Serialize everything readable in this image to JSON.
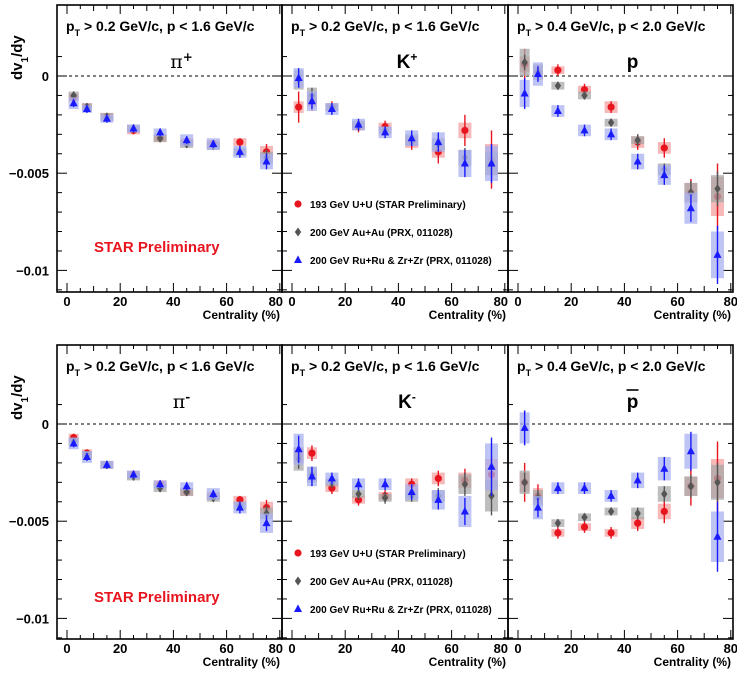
{
  "figure": {
    "ylabel": "dv",
    "ylabel_sub": "1",
    "ylabel_tail": "/dy",
    "xlabel": "Centrality (%)",
    "xticks": [
      "0",
      "20",
      "40",
      "60",
      "80"
    ],
    "yticks": [
      "0",
      "−0.005",
      "−0.01"
    ],
    "watermark": "STAR Preliminary",
    "legend": [
      {
        "label": "193 GeV U+U (STAR Preliminary)",
        "marker": "circle",
        "color": "#e8141e"
      },
      {
        "label": "200 GeV Au+Au (PRX, 011028)",
        "marker": "diamond",
        "color": "#555555"
      },
      {
        "label": "200 GeV Ru+Ru & Zr+Zr (PRX, 011028)",
        "marker": "triangle",
        "color": "#1a1aff"
      }
    ],
    "colors": {
      "uu": "#e8141e",
      "auau": "#555555",
      "ruzr": "#1a1aff",
      "uu_band": "#f4a0a0",
      "auau_band": "#a8a8a8",
      "ruzr_band": "#a8b0f0"
    }
  },
  "panels": [
    {
      "cuts": {
        "p1": "p",
        "s1": "T",
        "p2": " > 0.2 GeV/c, p < 1.6 GeV/c"
      },
      "particle": "π",
      "charge": "+"
    },
    {
      "cuts": {
        "p1": "p",
        "s1": "T",
        "p2": " > 0.2 GeV/c, p < 1.6 GeV/c"
      },
      "particle": "K",
      "charge": "+"
    },
    {
      "cuts": {
        "p1": "p",
        "s1": "T",
        "p2": " > 0.4 GeV/c, p < 2.0 GeV/c"
      },
      "particle": "p",
      "charge": ""
    },
    {
      "cuts": {
        "p1": "p",
        "s1": "T",
        "p2": " > 0.2 GeV/c, p < 1.6 GeV/c"
      },
      "particle": "π",
      "charge": "-"
    },
    {
      "cuts": {
        "p1": "p",
        "s1": "T",
        "p2": " > 0.2 GeV/c, p < 1.6 GeV/c"
      },
      "particle": "K",
      "charge": "-"
    },
    {
      "cuts": {
        "p1": "p",
        "s1": "T",
        "p2": " > 0.4 GeV/c, p < 2.0 GeV/c"
      },
      "particle": "p",
      "charge": "",
      "overline": true
    }
  ],
  "chart_data": [
    {
      "type": "scatter",
      "panel": "pi+",
      "x": [
        2.5,
        7.5,
        15,
        25,
        35,
        45,
        55,
        65,
        75
      ],
      "xlim": [
        -4,
        83
      ],
      "ylim": [
        -0.011,
        0.0015
      ],
      "series": [
        {
          "name": "193 GeV U+U (STAR Preliminary)",
          "y": [
            -0.0011,
            -0.0016,
            -0.0021,
            -0.0028,
            -0.0032,
            -0.0034,
            -0.0035,
            -0.0034,
            -0.0039
          ],
          "err": [
            0.0002,
            0.0002,
            0.0002,
            0.0002,
            0.0002,
            0.0002,
            0.0002,
            0.0002,
            0.0004
          ],
          "sys": [
            0.0002,
            0.0002,
            0.0002,
            0.0002,
            0.0002,
            0.0002,
            0.0002,
            0.0002,
            0.0003
          ]
        },
        {
          "name": "200 GeV Au+Au (PRX, 011028)",
          "y": [
            -0.001,
            -0.0016,
            -0.0021,
            -0.0027,
            -0.0032,
            -0.0035,
            -0.0036,
            -0.0039,
            -0.0042
          ],
          "err": [
            0.0002,
            0.0002,
            0.0002,
            0.0002,
            0.0002,
            0.0002,
            0.0002,
            0.0003,
            0.0004
          ],
          "sys": [
            0.0002,
            0.0002,
            0.0002,
            0.0002,
            0.0002,
            0.0002,
            0.0002,
            0.0002,
            0.0003
          ]
        },
        {
          "name": "200 GeV Ru+Ru & Zr+Zr (PRX, 011028)",
          "y": [
            -0.0014,
            -0.0017,
            -0.0022,
            -0.0027,
            -0.0029,
            -0.0033,
            -0.0035,
            -0.0039,
            -0.0044
          ],
          "err": [
            0.0002,
            0.0002,
            0.0002,
            0.0002,
            0.0002,
            0.0002,
            0.0002,
            0.0003,
            0.0004
          ],
          "sys": [
            0.0003,
            0.0002,
            0.0002,
            0.0002,
            0.0002,
            0.0003,
            0.0003,
            0.0003,
            0.0004
          ]
        }
      ]
    },
    {
      "type": "scatter",
      "panel": "K+",
      "x": [
        2.5,
        7.5,
        15,
        25,
        35,
        45,
        55,
        65,
        75
      ],
      "xlim": [
        -4,
        83
      ],
      "ylim": [
        -0.011,
        0.0015
      ],
      "series": [
        {
          "name": "193 GeV U+U (STAR Preliminary)",
          "y": [
            -0.0016,
            -0.0013,
            -0.0016,
            -0.0026,
            -0.0026,
            -0.0034,
            -0.0039,
            -0.0028,
            -0.0043
          ],
          "err": [
            0.0008,
            0.0005,
            0.0003,
            0.0003,
            0.0003,
            0.0004,
            0.0006,
            0.0008,
            0.0015
          ],
          "sys": [
            0.0003,
            0.0003,
            0.0002,
            0.0002,
            0.0002,
            0.0003,
            0.0003,
            0.0004,
            0.0008
          ]
        },
        {
          "name": "200 GeV Au+Au (PRX, 011028)",
          "y": [
            -0.0002,
            -0.001,
            -0.0016,
            -0.0025,
            -0.0028,
            -0.0033,
            -0.0035,
            -0.0042,
            -0.0045
          ],
          "err": [
            0.0004,
            0.0004,
            0.0002,
            0.0002,
            0.0002,
            0.0003,
            0.0003,
            0.0005,
            0.0008
          ],
          "sys": [
            0.0005,
            0.0004,
            0.0002,
            0.0002,
            0.0002,
            0.0003,
            0.0003,
            0.0004,
            0.0006
          ]
        },
        {
          "name": "200 GeV Ru+Ru & Zr+Zr (PRX, 011028)",
          "y": [
            -0.0001,
            -0.0013,
            -0.0017,
            -0.0025,
            -0.0029,
            -0.0032,
            -0.0034,
            -0.0045,
            -0.0045
          ],
          "err": [
            0.0005,
            0.0004,
            0.0003,
            0.0003,
            0.0003,
            0.0004,
            0.0005,
            0.0007,
            0.001
          ],
          "sys": [
            0.0005,
            0.0005,
            0.0003,
            0.0003,
            0.0003,
            0.0004,
            0.0005,
            0.0007,
            0.0009
          ]
        }
      ]
    },
    {
      "type": "scatter",
      "panel": "p",
      "x": [
        2.5,
        7.5,
        15,
        25,
        35,
        45,
        55,
        65,
        75
      ],
      "xlim": [
        -4,
        83
      ],
      "ylim": [
        -0.011,
        0.0015
      ],
      "series": [
        {
          "name": "193 GeV U+U (STAR Preliminary)",
          "y": [
            0.0006,
            0.0002,
            0.0003,
            -0.0007,
            -0.0016,
            -0.0034,
            -0.0037,
            -0.006,
            -0.0062
          ],
          "err": [
            0.0008,
            0.0004,
            0.0003,
            0.0003,
            0.0003,
            0.0004,
            0.0005,
            0.0007,
            0.0017
          ],
          "sys": [
            0.0004,
            0.0003,
            0.0002,
            0.0002,
            0.0003,
            0.0003,
            0.0003,
            0.0005,
            0.001
          ]
        },
        {
          "name": "200 GeV Au+Au (PRX, 011028)",
          "y": [
            0.0007,
            0.0002,
            -0.0005,
            -0.001,
            -0.0024,
            -0.0033,
            -0.0048,
            -0.006,
            -0.0058
          ],
          "err": [
            0.0004,
            0.0003,
            0.0002,
            0.0002,
            0.0002,
            0.0003,
            0.0003,
            0.0006,
            0.0009
          ],
          "sys": [
            0.0007,
            0.0004,
            0.0002,
            0.0002,
            0.0002,
            0.0002,
            0.0003,
            0.0005,
            0.0007
          ]
        },
        {
          "name": "200 GeV Ru+Ru & Zr+Zr (PRX, 011028)",
          "y": [
            -0.0009,
            0.0001,
            -0.0018,
            -0.0028,
            -0.003,
            -0.0044,
            -0.0051,
            -0.0068,
            -0.0092
          ],
          "err": [
            0.0008,
            0.0004,
            0.0003,
            0.0003,
            0.0003,
            0.0004,
            0.0005,
            0.0007,
            0.0015
          ],
          "sys": [
            0.0007,
            0.0006,
            0.0003,
            0.0003,
            0.0003,
            0.0004,
            0.0005,
            0.0008,
            0.0012
          ]
        }
      ]
    },
    {
      "type": "scatter",
      "panel": "pi-",
      "x": [
        2.5,
        7.5,
        15,
        25,
        35,
        45,
        55,
        65,
        75
      ],
      "xlim": [
        -4,
        83
      ],
      "ylim": [
        -0.011,
        0.0015
      ],
      "series": [
        {
          "name": "193 GeV U+U (STAR Preliminary)",
          "y": [
            -0.0007,
            -0.0015,
            -0.0021,
            -0.0026,
            -0.0031,
            -0.0035,
            -0.0037,
            -0.0039,
            -0.0043
          ],
          "err": [
            0.0002,
            0.0002,
            0.0002,
            0.0002,
            0.0002,
            0.0002,
            0.0002,
            0.0002,
            0.0004
          ],
          "sys": [
            0.0002,
            0.0002,
            0.0002,
            0.0002,
            0.0002,
            0.0002,
            0.0002,
            0.0002,
            0.0003
          ]
        },
        {
          "name": "200 GeV Au+Au (PRX, 011028)",
          "y": [
            -0.0009,
            -0.0016,
            -0.0021,
            -0.0027,
            -0.0033,
            -0.0035,
            -0.0038,
            -0.0042,
            -0.0046
          ],
          "err": [
            0.0002,
            0.0002,
            0.0002,
            0.0002,
            0.0002,
            0.0002,
            0.0002,
            0.0002,
            0.0004
          ],
          "sys": [
            0.0002,
            0.0002,
            0.0002,
            0.0002,
            0.0002,
            0.0002,
            0.0002,
            0.0002,
            0.0003
          ]
        },
        {
          "name": "200 GeV Ru+Ru & Zr+Zr (PRX, 011028)",
          "y": [
            -0.001,
            -0.0017,
            -0.0021,
            -0.0026,
            -0.0031,
            -0.0032,
            -0.0036,
            -0.0043,
            -0.0051
          ],
          "err": [
            0.0002,
            0.0002,
            0.0002,
            0.0002,
            0.0002,
            0.0002,
            0.0002,
            0.0003,
            0.0004
          ],
          "sys": [
            0.0003,
            0.0003,
            0.0002,
            0.0002,
            0.0002,
            0.0002,
            0.0003,
            0.0003,
            0.0005
          ]
        }
      ]
    },
    {
      "type": "scatter",
      "panel": "K-",
      "x": [
        2.5,
        7.5,
        15,
        25,
        35,
        45,
        55,
        65,
        75
      ],
      "xlim": [
        -4,
        83
      ],
      "ylim": [
        -0.011,
        0.0015
      ],
      "series": [
        {
          "name": "193 GeV U+U (STAR Preliminary)",
          "y": [
            -0.0016,
            -0.0015,
            -0.0033,
            -0.0039,
            -0.0037,
            -0.0031,
            -0.0028,
            -0.0029,
            -0.0026
          ],
          "err": [
            0.0006,
            0.0004,
            0.0003,
            0.0003,
            0.0003,
            0.0003,
            0.0004,
            0.0006,
            0.001
          ],
          "sys": [
            0.0004,
            0.0003,
            0.0002,
            0.0002,
            0.0002,
            0.0003,
            0.0003,
            0.0004,
            0.0008
          ]
        },
        {
          "name": "200 GeV Au+Au (PRX, 011028)",
          "y": [
            -0.0018,
            -0.0026,
            -0.003,
            -0.0036,
            -0.0038,
            -0.0037,
            -0.0037,
            -0.0031,
            -0.0037
          ],
          "err": [
            0.0005,
            0.0004,
            0.0003,
            0.0003,
            0.0003,
            0.0003,
            0.0004,
            0.0006,
            0.001
          ],
          "sys": [
            0.0006,
            0.0004,
            0.0002,
            0.0002,
            0.0002,
            0.0003,
            0.0003,
            0.0005,
            0.0008
          ]
        },
        {
          "name": "200 GeV Ru+Ru & Zr+Zr (PRX, 011028)",
          "y": [
            -0.0013,
            -0.0027,
            -0.0028,
            -0.0031,
            -0.0031,
            -0.0035,
            -0.0039,
            -0.0045,
            -0.0022
          ],
          "err": [
            0.0007,
            0.0005,
            0.0003,
            0.0003,
            0.0003,
            0.0004,
            0.0005,
            0.0007,
            0.0015
          ],
          "sys": [
            0.0008,
            0.0005,
            0.0003,
            0.0003,
            0.0003,
            0.0004,
            0.0005,
            0.0008,
            0.0012
          ]
        }
      ]
    },
    {
      "type": "scatter",
      "panel": "pbar",
      "x": [
        2.5,
        7.5,
        15,
        25,
        35,
        45,
        55,
        65,
        75
      ],
      "xlim": [
        -4,
        83
      ],
      "ylim": [
        -0.011,
        0.0015
      ],
      "series": [
        {
          "name": "193 GeV U+U (STAR Preliminary)",
          "y": [
            -0.003,
            -0.0037,
            -0.0056,
            -0.0053,
            -0.0056,
            -0.0051,
            -0.0045,
            -0.0032,
            -0.0028
          ],
          "err": [
            0.001,
            0.0006,
            0.0003,
            0.0003,
            0.0003,
            0.0004,
            0.0006,
            0.001,
            0.0019
          ],
          "sys": [
            0.0005,
            0.0004,
            0.0002,
            0.0002,
            0.0002,
            0.0003,
            0.0004,
            0.0005,
            0.001
          ]
        },
        {
          "name": "200 GeV Au+Au (PRX, 011028)",
          "y": [
            -0.003,
            -0.0038,
            -0.0051,
            -0.0048,
            -0.0045,
            -0.0046,
            -0.0036,
            -0.0032,
            -0.003
          ],
          "err": [
            0.0005,
            0.0004,
            0.0002,
            0.0002,
            0.0002,
            0.0003,
            0.0004,
            0.0006,
            0.001
          ],
          "sys": [
            0.0006,
            0.0004,
            0.0002,
            0.0002,
            0.0002,
            0.0003,
            0.0004,
            0.0005,
            0.0009
          ]
        },
        {
          "name": "200 GeV Ru+Ru & Zr+Zr (PRX, 011028)",
          "y": [
            -0.0002,
            -0.0043,
            -0.0033,
            -0.0033,
            -0.0037,
            -0.0029,
            -0.0023,
            -0.0014,
            -0.0058
          ],
          "err": [
            0.0009,
            0.0005,
            0.0003,
            0.0003,
            0.0003,
            0.0004,
            0.0006,
            0.001,
            0.0018
          ],
          "sys": [
            0.0008,
            0.0006,
            0.0003,
            0.0003,
            0.0003,
            0.0004,
            0.0006,
            0.0009,
            0.0013
          ]
        }
      ]
    }
  ]
}
